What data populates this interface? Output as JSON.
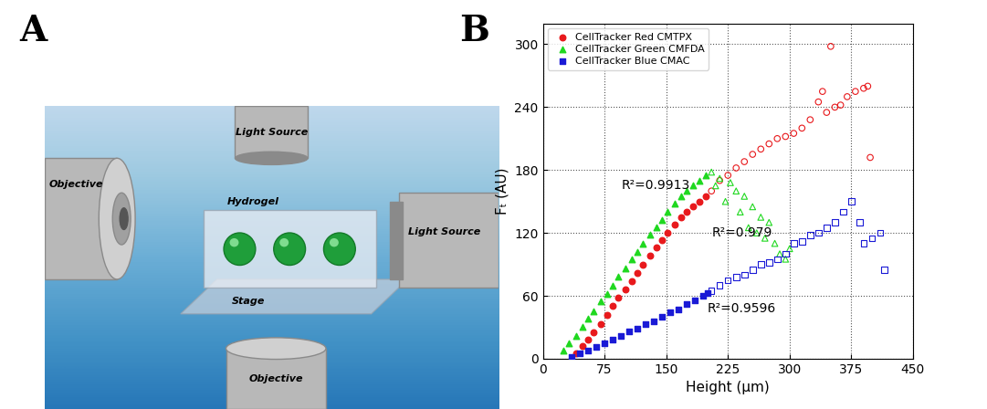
{
  "panel_labels": [
    "A",
    "B"
  ],
  "diagram": {
    "labels": {
      "top_source": "Light Source",
      "left_objective": "Objective",
      "hydrogel": "Hydrogel",
      "stage": "Stage",
      "right_source": "Light Source",
      "bottom_objective": "Objective"
    }
  },
  "chart_data": {
    "type": "scatter",
    "x_label": "Height (μm)",
    "y_label": "Fₜ (AU)",
    "xlim": [
      0,
      450
    ],
    "xticks": [
      0,
      75,
      150,
      225,
      300,
      375,
      450
    ],
    "ylim": [
      0,
      320
    ],
    "yticks": [
      0,
      60,
      120,
      180,
      240,
      300
    ],
    "grid": true,
    "legend": "upper left",
    "series": [
      {
        "name": "CellTracker Red CMTPX",
        "color": "#e8191c",
        "marker": "circle",
        "x": [
          40,
          48,
          55,
          62,
          70,
          78,
          85,
          92,
          100,
          108,
          115,
          122,
          130,
          138,
          145,
          152,
          160,
          168,
          175,
          182,
          190,
          198
        ],
        "values": [
          5,
          12,
          18,
          25,
          33,
          42,
          50,
          58,
          66,
          74,
          82,
          90,
          98,
          106,
          113,
          120,
          128,
          135,
          140,
          145,
          150,
          155
        ]
      },
      {
        "name": "CellTracker Green CMFDA",
        "color": "#1fd81f",
        "marker": "triangle",
        "x": [
          25,
          32,
          40,
          48,
          55,
          62,
          70,
          78,
          85,
          92,
          100,
          108,
          115,
          122,
          130,
          138,
          145,
          152,
          160,
          168,
          175,
          182,
          190,
          198
        ],
        "values": [
          8,
          15,
          22,
          30,
          38,
          45,
          55,
          62,
          70,
          78,
          86,
          95,
          102,
          110,
          118,
          125,
          132,
          140,
          148,
          155,
          160,
          165,
          170,
          175
        ]
      },
      {
        "name": "CellTracker Blue CMAC",
        "color": "#1a1ad6",
        "marker": "square",
        "x": [
          35,
          45,
          55,
          65,
          75,
          85,
          95,
          105,
          115,
          125,
          135,
          145,
          155,
          165,
          175,
          185,
          195,
          200
        ],
        "values": [
          2,
          5,
          8,
          11,
          15,
          18,
          22,
          26,
          29,
          33,
          36,
          40,
          44,
          47,
          52,
          56,
          60,
          63
        ]
      },
      {
        "color": "#e8191c",
        "marker": "open_circle",
        "x": [
          205,
          215,
          225,
          235,
          245,
          255,
          265,
          275,
          285,
          295,
          305,
          315,
          325,
          335,
          340,
          345,
          350,
          355,
          362,
          370,
          380,
          390,
          395,
          398
        ],
        "values": [
          160,
          170,
          175,
          182,
          188,
          195,
          200,
          205,
          210,
          212,
          215,
          220,
          228,
          245,
          255,
          235,
          298,
          240,
          242,
          250,
          255,
          258,
          260,
          192
        ]
      },
      {
        "color": "#1fd81f",
        "marker": "open_triangle",
        "x": [
          205,
          210,
          215,
          222,
          228,
          235,
          240,
          245,
          250,
          255,
          260,
          265,
          270,
          275,
          282,
          288,
          295,
          300
        ],
        "values": [
          178,
          165,
          172,
          150,
          168,
          160,
          140,
          155,
          125,
          145,
          120,
          135,
          115,
          130,
          110,
          100,
          95,
          105
        ]
      },
      {
        "color": "#1a1ad6",
        "marker": "open_square",
        "x": [
          205,
          215,
          225,
          235,
          245,
          255,
          265,
          275,
          285,
          295,
          305,
          315,
          325,
          335,
          345,
          355,
          365,
          375,
          385,
          390,
          400,
          410,
          415
        ],
        "values": [
          65,
          70,
          75,
          78,
          80,
          85,
          90,
          92,
          95,
          100,
          110,
          112,
          118,
          120,
          125,
          130,
          140,
          150,
          130,
          110,
          115,
          120,
          85
        ]
      }
    ],
    "annotations": [
      {
        "text": "R²=0.9913",
        "x": 95,
        "y": 165
      },
      {
        "text": "R²=0.979",
        "x": 205,
        "y": 120
      },
      {
        "text": "R²=0.9596",
        "x": 200,
        "y": 48
      }
    ]
  }
}
